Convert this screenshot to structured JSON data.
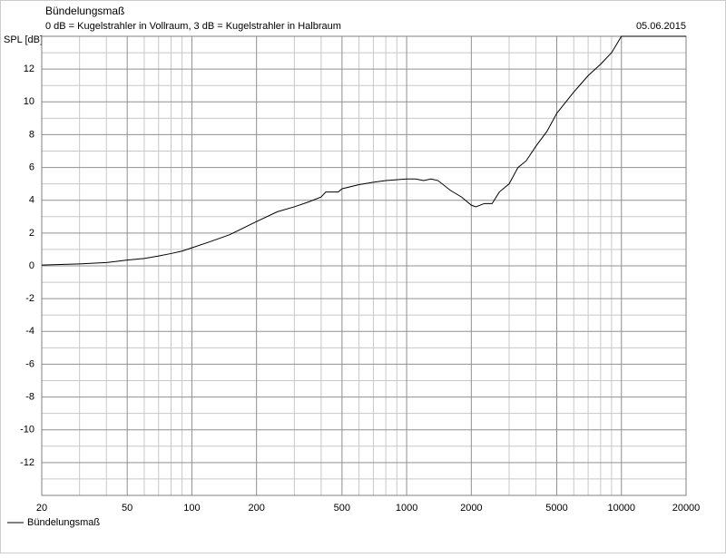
{
  "chart_data": {
    "type": "line",
    "title": "Bündelungsmaß",
    "subtitle": "0 dB = Kugelstrahler in Vollraum, 3 dB = Kugelstrahler in Halbraum",
    "date": "05.06.2015",
    "y_label": "SPL [dB]",
    "x_scale": "log",
    "x": [
      20,
      30,
      40,
      50,
      60,
      70,
      80,
      90,
      100,
      120,
      150,
      200,
      250,
      300,
      350,
      400,
      420,
      450,
      480,
      500,
      600,
      700,
      800,
      1000,
      1100,
      1200,
      1300,
      1400,
      1600,
      1800,
      2000,
      2100,
      2300,
      2500,
      2700,
      3000,
      3300,
      3600,
      4000,
      4500,
      5000,
      6000,
      7000,
      8000,
      9000,
      10000,
      20000
    ],
    "series": [
      {
        "name": "Bündelungsmaß",
        "color": "#000000",
        "values": [
          0.05,
          0.12,
          0.2,
          0.35,
          0.45,
          0.6,
          0.75,
          0.9,
          1.1,
          1.45,
          1.9,
          2.7,
          3.3,
          3.6,
          3.9,
          4.2,
          4.5,
          4.5,
          4.5,
          4.7,
          4.95,
          5.1,
          5.2,
          5.3,
          5.3,
          5.2,
          5.3,
          5.2,
          4.6,
          4.2,
          3.7,
          3.6,
          3.8,
          3.8,
          4.5,
          5.0,
          6.0,
          6.4,
          7.3,
          8.2,
          9.3,
          10.6,
          11.6,
          12.3,
          13.0,
          14,
          14
        ]
      }
    ],
    "xlim": [
      20,
      20000
    ],
    "xticks": [
      20,
      50,
      100,
      200,
      500,
      1000,
      2000,
      5000,
      10000,
      20000
    ],
    "x_minor_ticks": [
      30,
      40,
      60,
      70,
      80,
      90,
      300,
      400,
      600,
      700,
      800,
      900,
      3000,
      4000,
      6000,
      7000,
      8000,
      9000
    ],
    "ylim": [
      -14,
      14
    ],
    "yticks": [
      -12,
      -10,
      -8,
      -6,
      -4,
      -2,
      0,
      2,
      4,
      6,
      8,
      10,
      12
    ],
    "y_minor_ticks": [
      -13,
      -11,
      -9,
      -7,
      -5,
      -3,
      -1,
      1,
      3,
      5,
      7,
      9,
      11,
      13
    ],
    "grid": true,
    "legend": "bottom-left"
  }
}
